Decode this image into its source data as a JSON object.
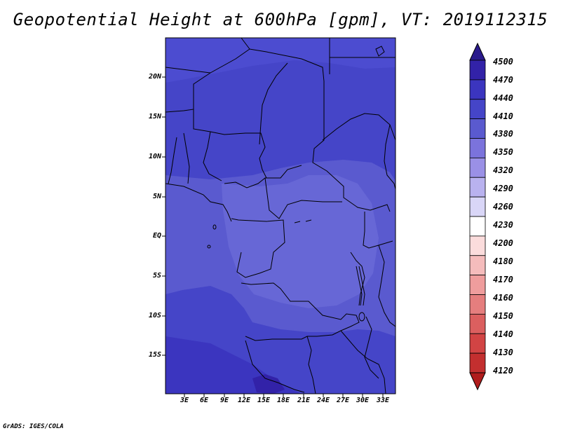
{
  "title": "Geopotential Height at 600hPa [gpm], VT: 2019112315",
  "credit": "GrADS: IGES/COLA",
  "map": {
    "lat_labels": [
      "20N",
      "15N",
      "10N",
      "5N",
      "EQ",
      "5S",
      "10S",
      "15S"
    ],
    "lon_labels": [
      "3E",
      "6E",
      "9E",
      "12E",
      "15E",
      "18E",
      "21E",
      "24E",
      "27E",
      "30E",
      "33E"
    ]
  },
  "colorbar": {
    "labels": [
      "4500",
      "4470",
      "4440",
      "4410",
      "4380",
      "4350",
      "4320",
      "4290",
      "4260",
      "4230",
      "4200",
      "4180",
      "4170",
      "4160",
      "4150",
      "4140",
      "4130",
      "4120"
    ],
    "colors": [
      "#2a1a8c",
      "#3222a8",
      "#3b35bf",
      "#4545c8",
      "#5a5acf",
      "#7b73dc",
      "#9a90e6",
      "#b9b2ef",
      "#d9d6f7",
      "#ffffff",
      "#fbdcdc",
      "#f5bcbc",
      "#ef9d9d",
      "#e57e7e",
      "#db5f5f",
      "#d24444",
      "#c32f2f",
      "#b01c1c"
    ]
  }
}
